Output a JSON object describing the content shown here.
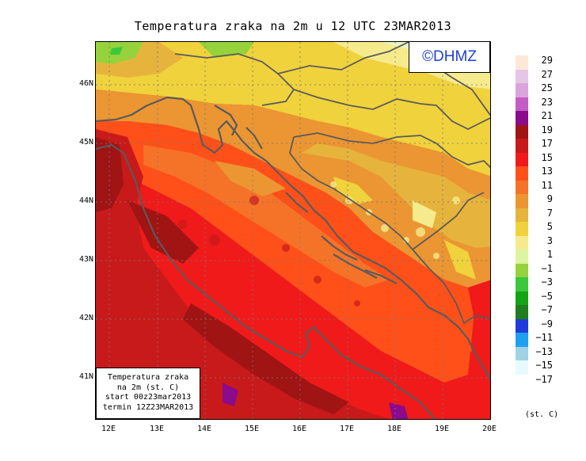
{
  "title": "Temperatura zraka na 2m u 12 UTC 23MAR2013",
  "logo": "©DHMZ",
  "lat_ticks": [
    "46N",
    "45N",
    "44N",
    "43N",
    "42N",
    "41N"
  ],
  "lon_ticks": [
    "12E",
    "13E",
    "14E",
    "15E",
    "16E",
    "17E",
    "18E",
    "19E",
    "20E"
  ],
  "info": {
    "line1": "Temperatura zraka",
    "line2": "na 2m (st. C)",
    "line3": "start 00z23mar2013",
    "line4": "termin 12Z23MAR2013"
  },
  "legend": {
    "labels": [
      "29",
      "27",
      "25",
      "23",
      "21",
      "19",
      "17",
      "15",
      "13",
      "11",
      "9",
      "7",
      "5",
      "3",
      "1",
      "−1",
      "−3",
      "−5",
      "−7",
      "−9",
      "−11",
      "−13",
      "−15",
      "−17"
    ],
    "colors": [
      "#fde8d8",
      "#e6c6e6",
      "#dca4dc",
      "#c45cc4",
      "#8c0a8c",
      "#a01414",
      "#c81a1a",
      "#f01a1a",
      "#ff5019",
      "#f57328",
      "#eb9632",
      "#e6b43c",
      "#f0d23c",
      "#f5eb8c",
      "#dcf5a0",
      "#96d23c",
      "#3cc83c",
      "#14a514",
      "#1e7d1e",
      "#1e3cdc",
      "#1ea0f0",
      "#a0d2e6",
      "#e6faff",
      "#ffffff"
    ],
    "unit": "(st. C)"
  },
  "colors": {
    "coast": "#5a5a5a",
    "logo_text": "#1f3fd0"
  }
}
